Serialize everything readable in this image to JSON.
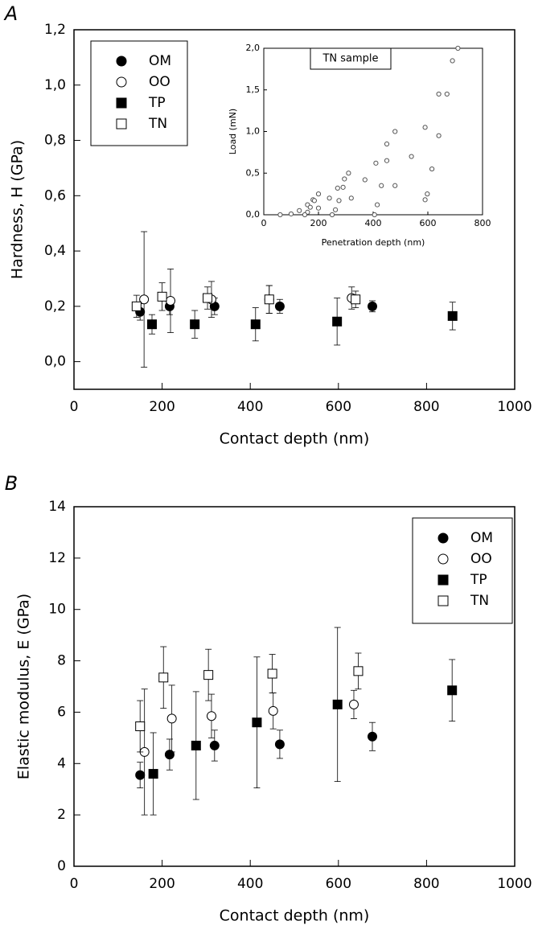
{
  "chart_data": [
    {
      "type": "scatter",
      "panel_label": "A",
      "xlabel": "Contact depth (nm)",
      "ylabel": "Hardness, H (GPa)",
      "xlim": [
        0,
        1000
      ],
      "ylim": [
        -0.1,
        1.2
      ],
      "xticks": [
        0,
        200,
        400,
        600,
        800,
        1000
      ],
      "yticks": [
        {
          "value": 0,
          "label": "0,0"
        },
        {
          "value": 0.2,
          "label": "0,2"
        },
        {
          "value": 0.4,
          "label": "0,4"
        },
        {
          "value": 0.6,
          "label": "0,6"
        },
        {
          "value": 0.8,
          "label": "0,8"
        },
        {
          "value": 1.0,
          "label": "1,0"
        },
        {
          "value": 1.2,
          "label": "1,2"
        }
      ],
      "legend": "upper left",
      "series": [
        {
          "name": "OM",
          "marker": "circle",
          "filled": true,
          "color": "#000000",
          "x": [
            150,
            217,
            319,
            467,
            677
          ],
          "values": [
            0.18,
            0.2,
            0.2,
            0.2,
            0.2
          ],
          "errors": [
            0.03,
            0.03,
            0.03,
            0.025,
            0.02
          ]
        },
        {
          "name": "OO",
          "marker": "circle",
          "filled": false,
          "color": "#000000",
          "x": [
            159,
            219,
            312,
            443,
            630
          ],
          "values": [
            0.225,
            0.22,
            0.225,
            0.225,
            0.23
          ],
          "errors": [
            0.245,
            0.115,
            0.065,
            0.05,
            0.04
          ]
        },
        {
          "name": "TP",
          "marker": "square",
          "filled": true,
          "color": "#000000",
          "x": [
            177,
            274,
            412,
            597,
            859
          ],
          "values": [
            0.135,
            0.135,
            0.135,
            0.145,
            0.165
          ],
          "errors": [
            0.035,
            0.05,
            0.06,
            0.085,
            0.05
          ]
        },
        {
          "name": "TN",
          "marker": "square",
          "filled": false,
          "color": "#000000",
          "x": [
            142,
            200,
            303,
            443,
            639
          ],
          "values": [
            0.2,
            0.235,
            0.23,
            0.225,
            0.225
          ],
          "errors": [
            0.04,
            0.05,
            0.04,
            0.05,
            0.03
          ]
        }
      ]
    },
    {
      "type": "scatter",
      "panel_label": "B",
      "xlabel": "Contact depth (nm)",
      "ylabel": "Elastic modulus, E (GPa)",
      "xlim": [
        0,
        1000
      ],
      "ylim": [
        0,
        14
      ],
      "xticks": [
        0,
        200,
        400,
        600,
        800,
        1000
      ],
      "yticks": [
        0,
        2,
        4,
        6,
        8,
        10,
        12,
        14
      ],
      "legend": "upper right",
      "series": [
        {
          "name": "OM",
          "marker": "circle",
          "filled": true,
          "color": "#000000",
          "x": [
            150,
            217,
            319,
            467,
            677
          ],
          "values": [
            3.55,
            4.35,
            4.7,
            4.75,
            5.05
          ],
          "errors": [
            0.5,
            0.6,
            0.6,
            0.55,
            0.55
          ]
        },
        {
          "name": "OO",
          "marker": "circle",
          "filled": false,
          "color": "#000000",
          "x": [
            160,
            222,
            312,
            452,
            635
          ],
          "values": [
            4.45,
            5.75,
            5.85,
            6.05,
            6.3
          ],
          "errors": [
            2.45,
            1.3,
            0.85,
            0.7,
            0.55
          ]
        },
        {
          "name": "TP",
          "marker": "square",
          "filled": true,
          "color": "#000000",
          "x": [
            180,
            277,
            415,
            598,
            858
          ],
          "values": [
            3.6,
            4.7,
            5.6,
            6.3,
            6.85
          ],
          "errors": [
            1.6,
            2.1,
            2.55,
            3.0,
            1.2
          ]
        },
        {
          "name": "TN",
          "marker": "square",
          "filled": false,
          "color": "#000000",
          "x": [
            150,
            203,
            305,
            450,
            645
          ],
          "values": [
            5.45,
            7.35,
            7.45,
            7.5,
            7.6
          ],
          "errors": [
            1.0,
            1.2,
            1.0,
            0.75,
            0.7
          ]
        }
      ]
    },
    {
      "type": "scatter",
      "title": "TN sample",
      "xlabel": "Penetration depth (nm)",
      "ylabel": "Load (mN)",
      "xlim": [
        0,
        800
      ],
      "ylim": [
        0,
        2.0
      ],
      "xticks": [
        0,
        200,
        400,
        600,
        800
      ],
      "yticks": [
        {
          "value": 0,
          "label": "0,0"
        },
        {
          "value": 0.5,
          "label": "0,5"
        },
        {
          "value": 1.0,
          "label": "1,0"
        },
        {
          "value": 1.5,
          "label": "1,5"
        },
        {
          "value": 2.0,
          "label": "2,0"
        }
      ],
      "series": [
        {
          "marker": "circle",
          "filled": false,
          "color": "#555555",
          "x": [
            60,
            100,
            130,
            160,
            180,
            200,
            185,
            170,
            160,
            150,
            200,
            240,
            270,
            295,
            310,
            290,
            275,
            262,
            250,
            320,
            370,
            410,
            450,
            480,
            450,
            430,
            415,
            405,
            480,
            540,
            590,
            640,
            690,
            710,
            670,
            640,
            615,
            598,
            590
          ],
          "values": [
            0,
            0.01,
            0.05,
            0.12,
            0.18,
            0.25,
            0.17,
            0.09,
            0.03,
            0,
            0.08,
            0.2,
            0.32,
            0.43,
            0.5,
            0.33,
            0.17,
            0.06,
            0,
            0.2,
            0.42,
            0.62,
            0.85,
            1.0,
            0.65,
            0.35,
            0.12,
            0,
            0.35,
            0.7,
            1.05,
            1.45,
            1.85,
            2.0,
            1.45,
            0.95,
            0.55,
            0.25,
            0.18
          ]
        }
      ]
    }
  ]
}
